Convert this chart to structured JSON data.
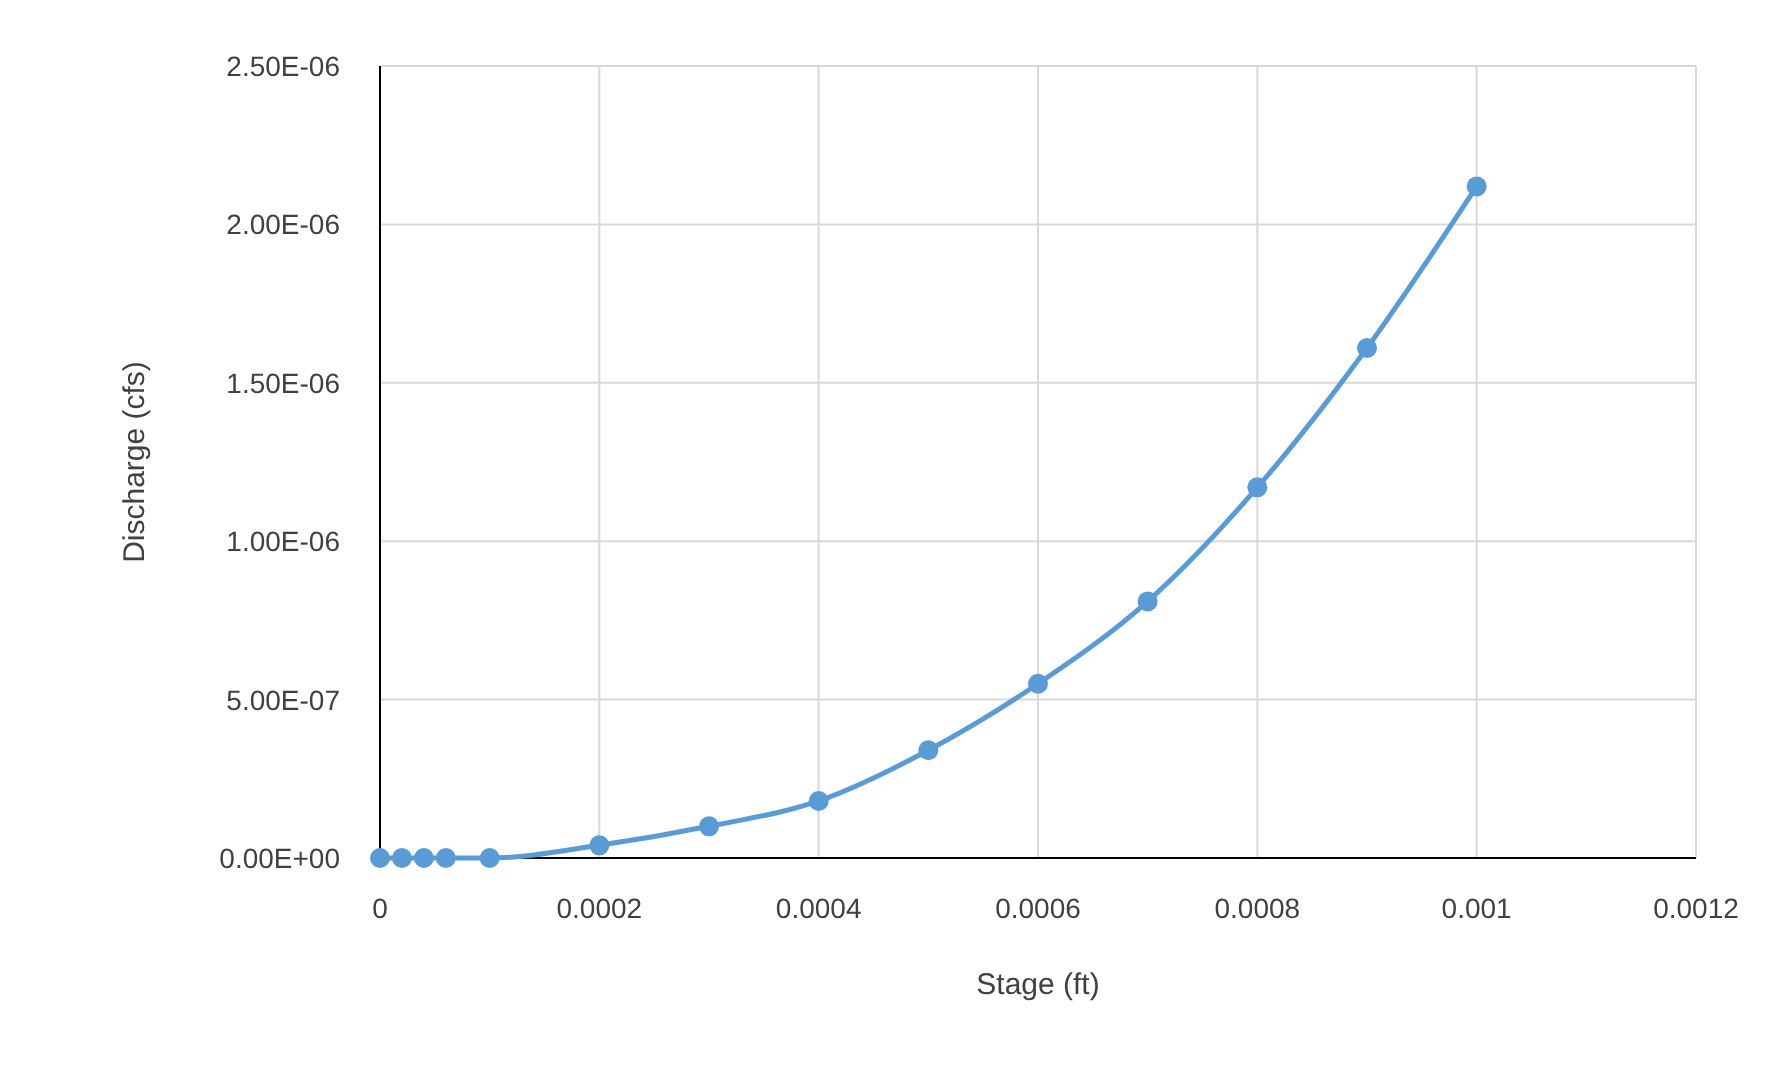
{
  "chart_data": {
    "type": "line",
    "xlabel": "Stage (ft)",
    "ylabel": "Discharge (cfs)",
    "series": [
      {
        "color": "#5b9bd5",
        "marker": "circle",
        "x": [
          0,
          2e-05,
          4e-05,
          6e-05,
          0.0001,
          0.0002,
          0.0003,
          0.0004,
          0.0005,
          0.0006,
          0.0007,
          0.0008,
          0.0009,
          0.001
        ],
        "values": [
          0,
          0,
          0,
          0,
          0,
          4e-08,
          1e-07,
          1.8e-07,
          3.4e-07,
          5.5e-07,
          8.1e-07,
          1.17e-06,
          1.61e-06,
          2.12e-06
        ]
      }
    ],
    "xlim": [
      0,
      0.0012
    ],
    "xticks": [
      0,
      0.0002,
      0.0004,
      0.0006,
      0.0008,
      0.001,
      0.0012
    ],
    "ylim": [
      0,
      2.5e-06
    ],
    "yticks": [
      {
        "value": 0,
        "label": "0.00E+00"
      },
      {
        "value": 5e-07,
        "label": "5.00E-07"
      },
      {
        "value": 1e-06,
        "label": "1.00E-06"
      },
      {
        "value": 1.5e-06,
        "label": "1.50E-06"
      },
      {
        "value": 2e-06,
        "label": "2.00E-06"
      },
      {
        "value": 2.5e-06,
        "label": "2.50E-06"
      }
    ],
    "grid": true
  }
}
